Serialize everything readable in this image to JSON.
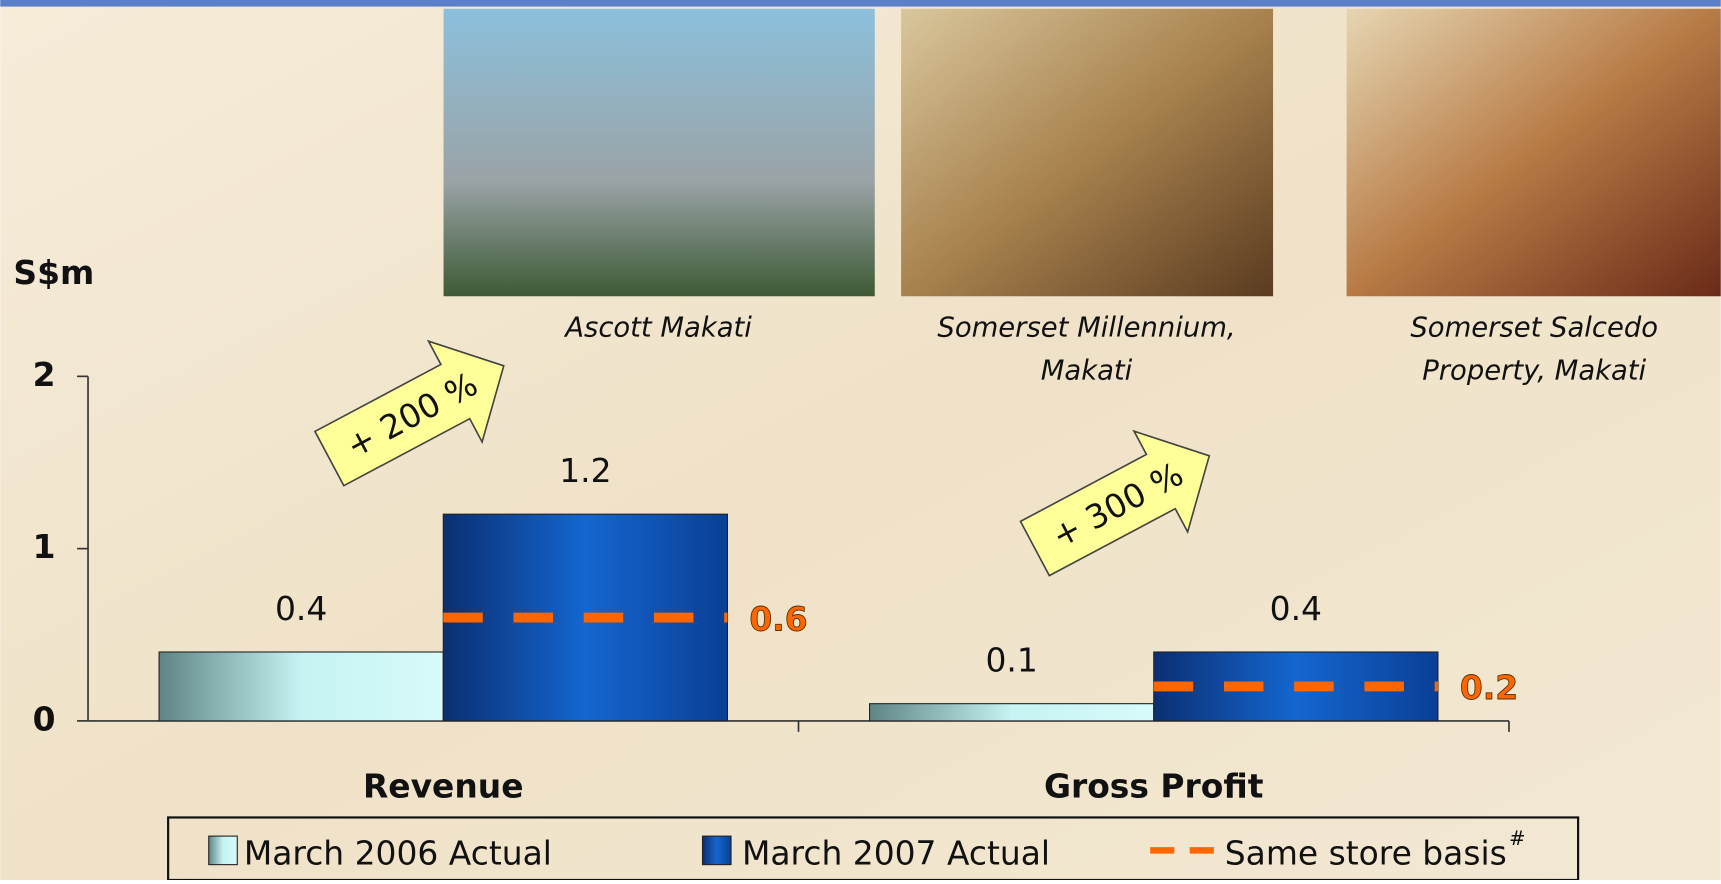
{
  "chart_data": {
    "type": "bar",
    "y_label": "S$m",
    "categories": [
      "Revenue",
      "Gross Profit"
    ],
    "series": [
      {
        "name": "March 2006 Actual",
        "color": "#a8e4e4",
        "values": [
          0.4,
          0.1
        ]
      },
      {
        "name": "March 2007 Actual",
        "color": "#1458b8",
        "values": [
          1.2,
          0.4
        ]
      },
      {
        "name": "Same store basis",
        "footnote_mark": "#",
        "color": "#ff6600",
        "style": "dashed",
        "values": [
          0.6,
          0.2
        ]
      }
    ],
    "ylim": [
      0,
      2
    ],
    "yticks": [
      0,
      1,
      2
    ],
    "grid": false,
    "annotations": [
      "+ 200 %",
      "+ 300 %"
    ]
  },
  "photos": [
    {
      "caption": [
        "Ascott Makati"
      ]
    },
    {
      "caption": [
        "Somerset Millennium,",
        "Makati"
      ]
    },
    {
      "caption": [
        "Somerset Salcedo",
        "Property, Makati"
      ]
    }
  ]
}
